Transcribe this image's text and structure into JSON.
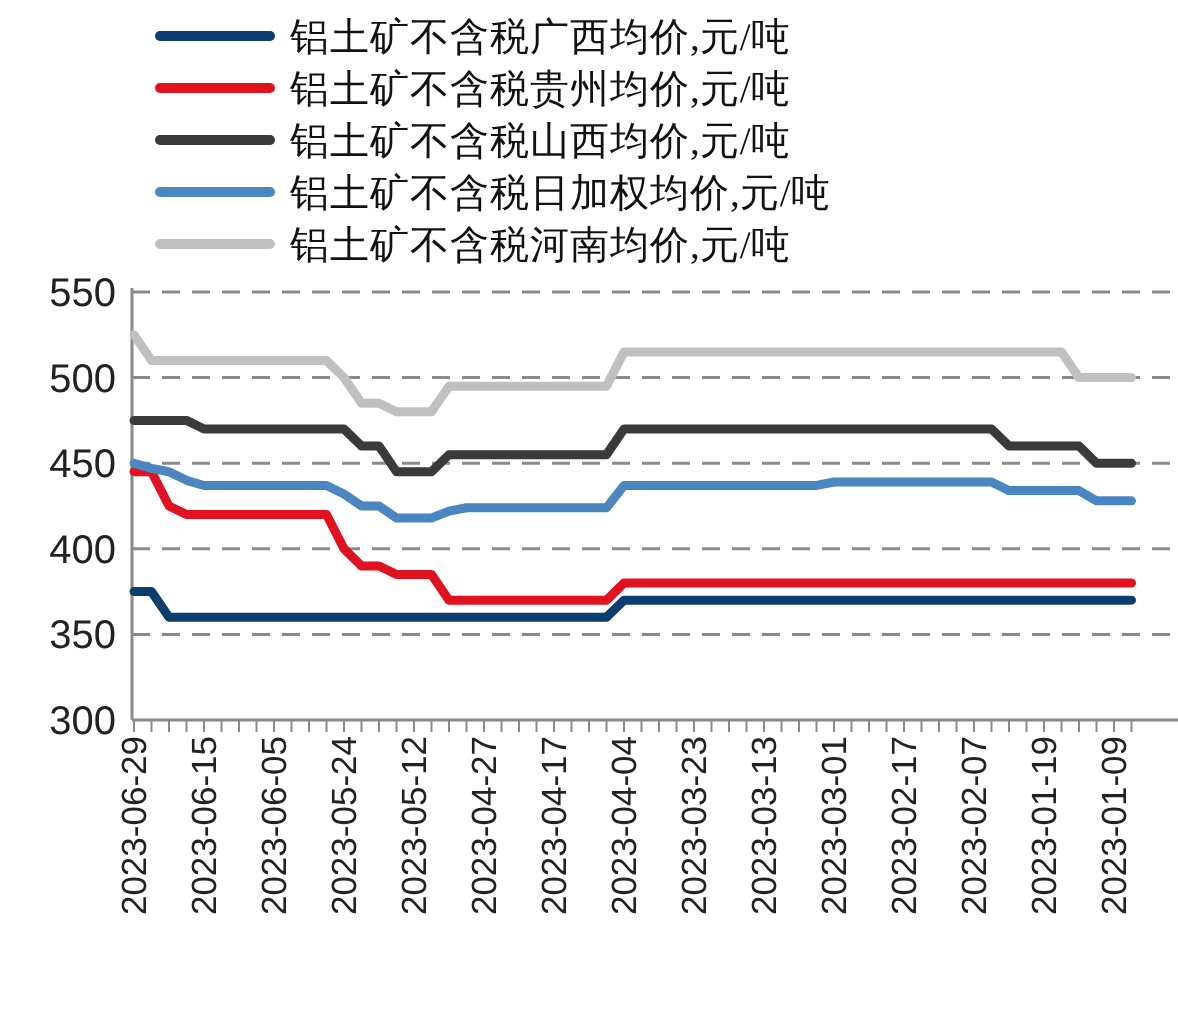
{
  "chart_data": {
    "type": "line",
    "ylim": [
      300,
      550
    ],
    "yticks": [
      300,
      350,
      400,
      450,
      500,
      550
    ],
    "grid": "y",
    "legend": "top",
    "categories": [
      "2023-06-29",
      null,
      null,
      null,
      "2023-06-15",
      null,
      null,
      null,
      "2023-06-05",
      null,
      null,
      null,
      "2023-05-24",
      null,
      null,
      null,
      "2023-05-12",
      null,
      null,
      null,
      "2023-04-27",
      null,
      null,
      null,
      "2023-04-17",
      null,
      null,
      null,
      "2023-04-04",
      null,
      null,
      null,
      "2023-03-23",
      null,
      null,
      null,
      "2023-03-13",
      null,
      null,
      null,
      "2023-03-01",
      null,
      null,
      null,
      "2023-02-17",
      null,
      null,
      null,
      "2023-02-07",
      null,
      null,
      null,
      "2023-01-19",
      null,
      null,
      null,
      "2023-01-09",
      null
    ],
    "series": [
      {
        "name": "铝土矿不含税广西均价,元/吨",
        "color": "#0b3d6e",
        "values": [
          375,
          375,
          360,
          360,
          360,
          360,
          360,
          360,
          360,
          360,
          360,
          360,
          360,
          360,
          360,
          360,
          360,
          360,
          360,
          360,
          360,
          360,
          360,
          360,
          360,
          360,
          360,
          360,
          370,
          370,
          370,
          370,
          370,
          370,
          370,
          370,
          370,
          370,
          370,
          370,
          370,
          370,
          370,
          370,
          370,
          370,
          370,
          370,
          370,
          370,
          370,
          370,
          370,
          370,
          370,
          370,
          370,
          370
        ]
      },
      {
        "name": "铝土矿不含税贵州均价,元/吨",
        "color": "#e0121f",
        "values": [
          445,
          445,
          425,
          420,
          420,
          420,
          420,
          420,
          420,
          420,
          420,
          420,
          400,
          390,
          390,
          385,
          385,
          385,
          370,
          370,
          370,
          370,
          370,
          370,
          370,
          370,
          370,
          370,
          380,
          380,
          380,
          380,
          380,
          380,
          380,
          380,
          380,
          380,
          380,
          380,
          380,
          380,
          380,
          380,
          380,
          380,
          380,
          380,
          380,
          380,
          380,
          380,
          380,
          380,
          380,
          380,
          380,
          380
        ]
      },
      {
        "name": "铝土矿不含税山西均价,元/吨",
        "color": "#3a3a3a",
        "values": [
          475,
          475,
          475,
          475,
          470,
          470,
          470,
          470,
          470,
          470,
          470,
          470,
          470,
          460,
          460,
          445,
          445,
          445,
          455,
          455,
          455,
          455,
          455,
          455,
          455,
          455,
          455,
          455,
          470,
          470,
          470,
          470,
          470,
          470,
          470,
          470,
          470,
          470,
          470,
          470,
          470,
          470,
          470,
          470,
          470,
          470,
          470,
          470,
          470,
          470,
          460,
          460,
          460,
          460,
          460,
          450,
          450,
          450
        ]
      },
      {
        "name": "铝土矿不含税日加权均价,元/吨",
        "color": "#4a86c0",
        "values": [
          450,
          447,
          445,
          440,
          437,
          437,
          437,
          437,
          437,
          437,
          437,
          437,
          432,
          425,
          425,
          418,
          418,
          418,
          422,
          424,
          424,
          424,
          424,
          424,
          424,
          424,
          424,
          424,
          437,
          437,
          437,
          437,
          437,
          437,
          437,
          437,
          437,
          437,
          437,
          437,
          439,
          439,
          439,
          439,
          439,
          439,
          439,
          439,
          439,
          439,
          434,
          434,
          434,
          434,
          434,
          428,
          428,
          428
        ]
      },
      {
        "name": "铝土矿不含税河南均价,元/吨",
        "color": "#c0c0c0",
        "values": [
          525,
          510,
          510,
          510,
          510,
          510,
          510,
          510,
          510,
          510,
          510,
          510,
          500,
          485,
          485,
          480,
          480,
          480,
          495,
          495,
          495,
          495,
          495,
          495,
          495,
          495,
          495,
          495,
          515,
          515,
          515,
          515,
          515,
          515,
          515,
          515,
          515,
          515,
          515,
          515,
          515,
          515,
          515,
          515,
          515,
          515,
          515,
          515,
          515,
          515,
          515,
          515,
          515,
          515,
          500,
          500,
          500,
          500
        ]
      }
    ]
  }
}
